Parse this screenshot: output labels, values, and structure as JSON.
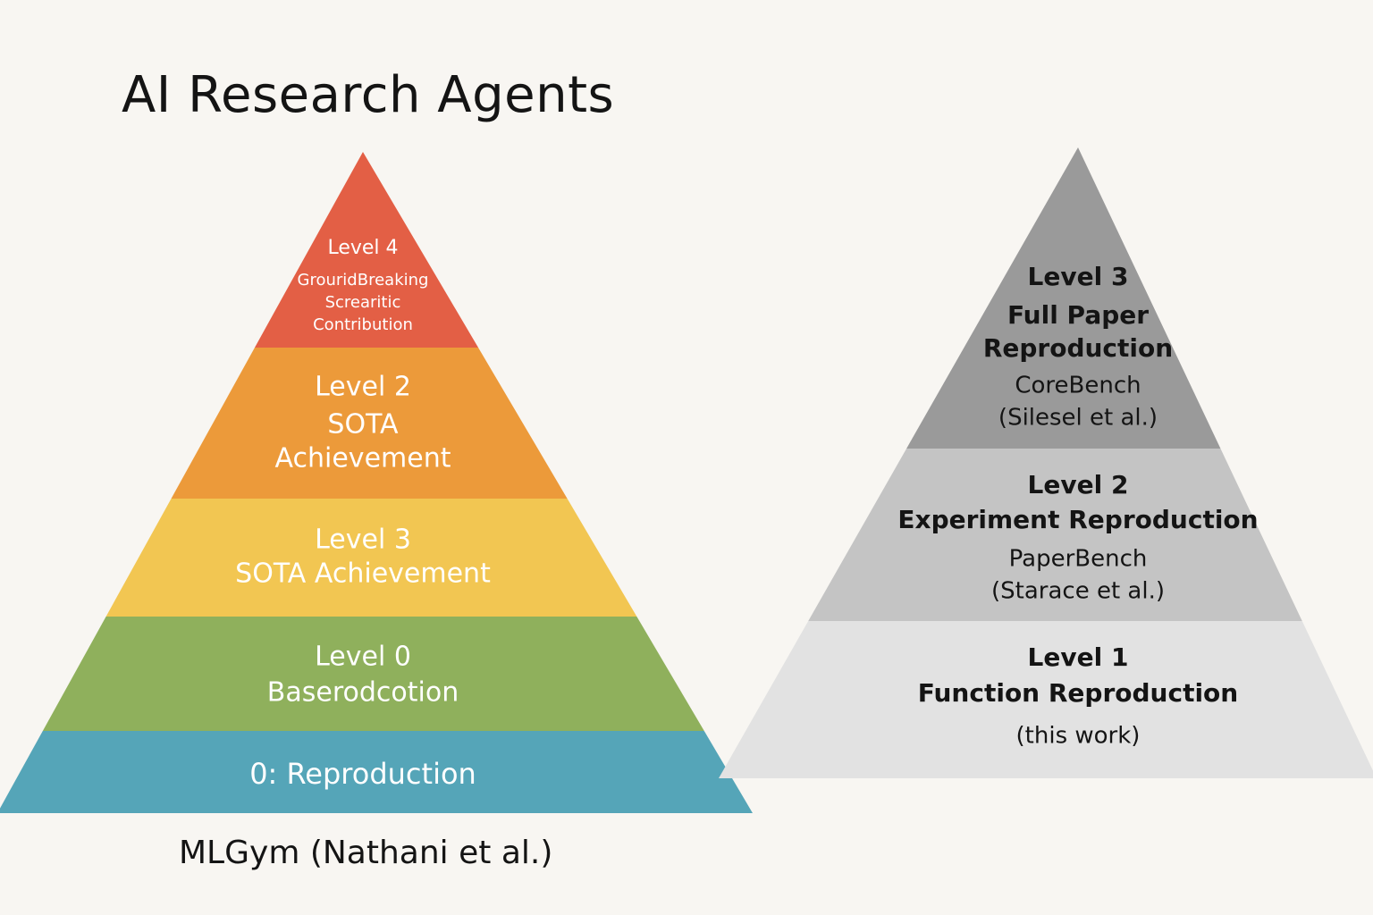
{
  "title": "AI Research Agents",
  "left_pyramid": {
    "caption": "MLGym (Nathani et al.)",
    "tiers": [
      {
        "lines": [
          "Level 4",
          "GrouridBreaking",
          "Screaritic",
          "Contribution"
        ],
        "color": "#e35f45",
        "text_color": "#ffffff"
      },
      {
        "lines": [
          "Level 2",
          "SOTA",
          "Achievement"
        ],
        "color": "#ec9a3a",
        "text_color": "#ffffff"
      },
      {
        "lines": [
          "Level 3",
          "SOTA Achievement"
        ],
        "color": "#f2c652",
        "text_color": "#ffffff"
      },
      {
        "lines": [
          "Level 0",
          "Baserodcotion"
        ],
        "color": "#8fb05c",
        "text_color": "#ffffff"
      },
      {
        "lines": [
          "0: Reproduction"
        ],
        "color": "#55a5b8",
        "text_color": "#ffffff"
      }
    ]
  },
  "right_pyramid": {
    "tiers": [
      {
        "lines": [
          "Level 3",
          "Full Paper",
          "Reproduction",
          "CoreBench",
          "(Silesel et al.)"
        ],
        "color": "#9a9a9a",
        "text_color": "#141414"
      },
      {
        "lines": [
          "Level 2",
          "Experiment Reproduction",
          "PaperBench",
          "(Starace et al.)"
        ],
        "color": "#c4c4c4",
        "text_color": "#141414"
      },
      {
        "lines": [
          "Level 1",
          "Function Reproduction",
          "(this work)"
        ],
        "color": "#e2e2e2",
        "text_color": "#141414"
      }
    ]
  }
}
